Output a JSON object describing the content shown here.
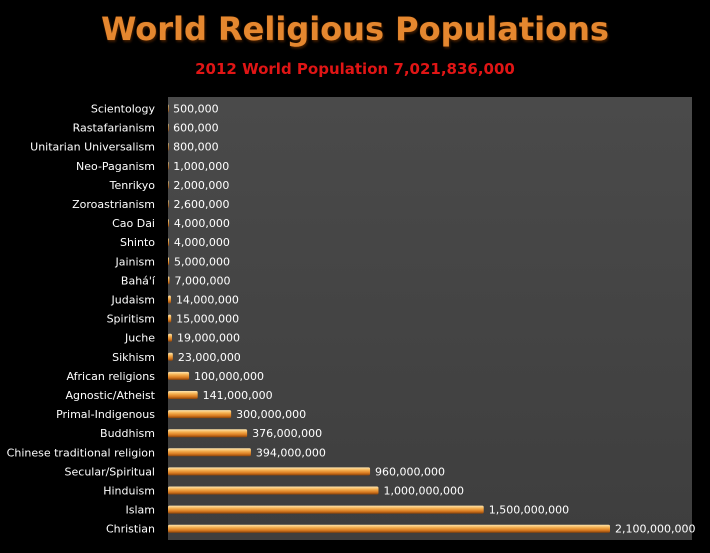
{
  "header": {
    "title": "World Religious Populations",
    "subtitle": "2012 World Population  7,021,836,000"
  },
  "chart_data": {
    "type": "bar",
    "orientation": "horizontal",
    "title": "World Religious Populations",
    "subtitle": "2012 World Population  7,021,836,000",
    "categories": [
      "Scientology",
      "Rastafarianism",
      "Unitarian Universalism",
      "Neo-Paganism",
      "Tenrikyo",
      "Zoroastrianism",
      "Cao Dai",
      "Shinto",
      "Jainism",
      "Bahá'í",
      "Judaism",
      "Spiritism",
      "Juche",
      "Sikhism",
      "African religions",
      "Agnostic/Atheist",
      "Primal-Indigenous",
      "Buddhism",
      "Chinese traditional religion",
      "Secular/Spiritual",
      "Hinduism",
      "Islam",
      "Christian"
    ],
    "values": [
      500000,
      600000,
      800000,
      1000000,
      2000000,
      2600000,
      4000000,
      4000000,
      5000000,
      7000000,
      14000000,
      15000000,
      19000000,
      23000000,
      100000000,
      141000000,
      300000000,
      376000000,
      394000000,
      960000000,
      1000000000,
      1500000000,
      2100000000
    ],
    "value_labels": [
      "500,000",
      "600,000",
      "800,000",
      "1,000,000",
      "2,000,000",
      "2,600,000",
      "4,000,000",
      "4,000,000",
      "5,000,000",
      "7,000,000",
      "14,000,000",
      "15,000,000",
      "19,000,000",
      "23,000,000",
      "100,000,000",
      "141,000,000",
      "300,000,000",
      "376,000,000",
      "394,000,000",
      "960,000,000",
      "1,000,000,000",
      "1,500,000,000",
      "2,100,000,000"
    ],
    "xlim": [
      0,
      2100000000
    ],
    "grid": false,
    "legend": "none",
    "colors": {
      "background": "#000000",
      "plot_area": "#4a4a4a",
      "bar_light": "#ffe0a0",
      "bar_mid": "#f0a040",
      "bar_dark": "#b05a10",
      "title": "#e5872f",
      "subtitle": "#e01515",
      "text": "#ffffff"
    }
  }
}
